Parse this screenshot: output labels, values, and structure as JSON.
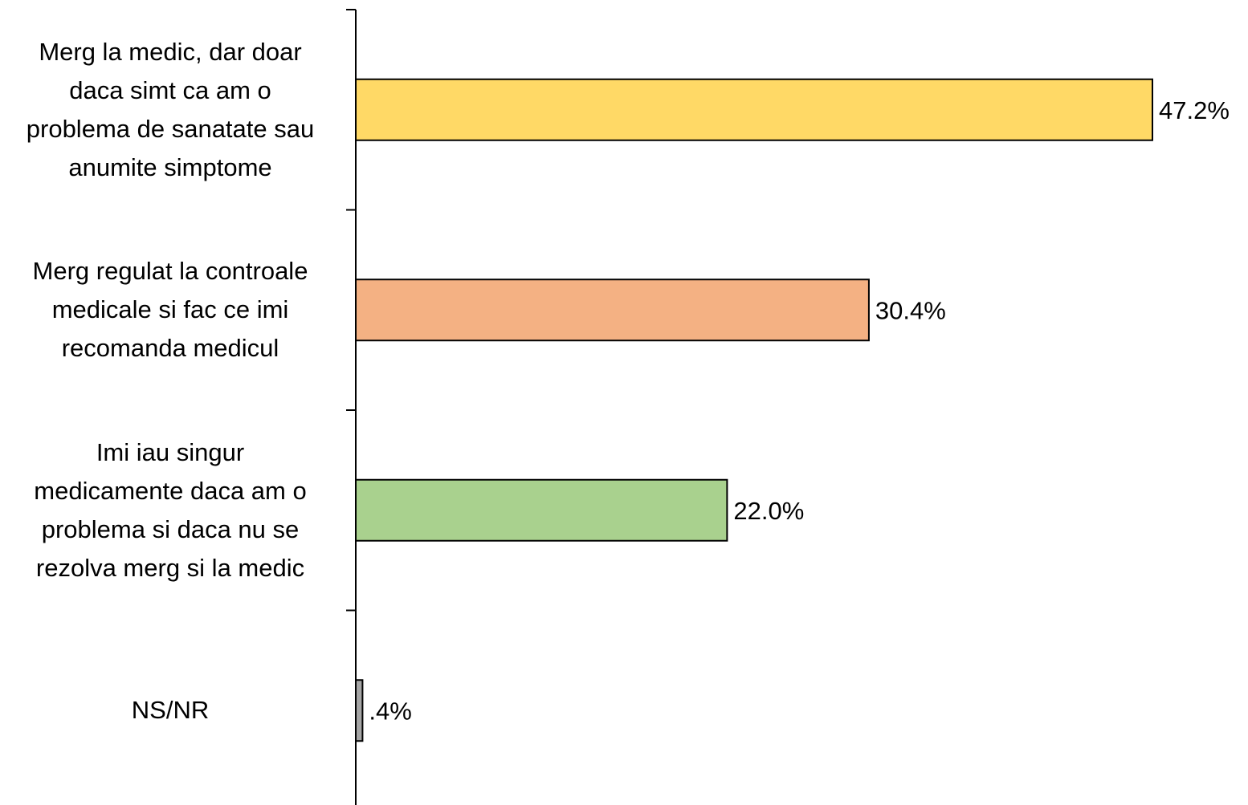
{
  "chart_data": {
    "type": "bar",
    "orientation": "horizontal",
    "categories": [
      "Merg la medic, dar doar daca simt ca am o problema de sanatate sau anumite simptome",
      "Merg regulat la controale medicale si fac ce imi recomanda medicul",
      "Imi iau singur medicamente daca am o problema si daca nu se rezolva merg si la medic",
      "NS/NR"
    ],
    "category_lines": [
      [
        "Merg la medic, dar doar",
        "daca simt ca am o",
        "problema de sanatate sau",
        "anumite simptome"
      ],
      [
        "Merg regulat la controale",
        "medicale si fac ce imi",
        "recomanda medicul"
      ],
      [
        "Imi iau singur",
        "medicamente daca am o",
        "problema si daca nu se",
        "rezolva merg si la medic"
      ],
      [
        "NS/NR"
      ]
    ],
    "values": [
      47.2,
      30.4,
      22.0,
      0.4
    ],
    "data_labels": [
      "47.2%",
      "30.4%",
      "22.0%",
      ".4%"
    ],
    "colors": [
      "#FFD966",
      "#F4B183",
      "#A9D18E",
      "#A6A6A6"
    ],
    "xlim": [
      0,
      47.2
    ],
    "title": "",
    "xlabel": "",
    "ylabel": "",
    "grid": false,
    "legend": "none"
  }
}
